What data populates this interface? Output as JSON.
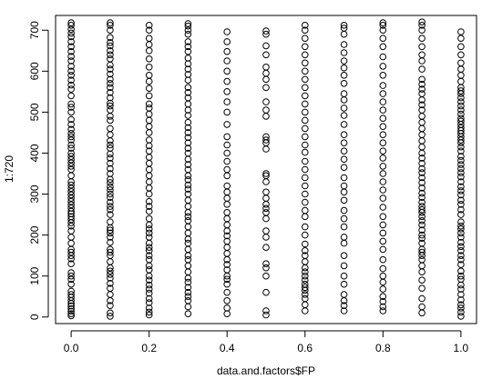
{
  "chart_data": {
    "type": "scatter",
    "title": "",
    "xlabel": "data.and.factors$FP",
    "ylabel": "1:720",
    "xlim": [
      -0.04,
      1.04
    ],
    "ylim": [
      -16,
      736
    ],
    "x_ticks": [
      0.0,
      0.2,
      0.4,
      0.6,
      0.8,
      1.0
    ],
    "x_tick_labels": [
      "0.0",
      "0.2",
      "0.4",
      "0.6",
      "0.8",
      "1.0"
    ],
    "y_ticks": [
      0,
      100,
      200,
      300,
      400,
      500,
      600,
      700
    ],
    "y_tick_labels": [
      "0",
      "100",
      "200",
      "300",
      "400",
      "500",
      "600",
      "700"
    ],
    "grid": false,
    "legend": "none",
    "marker": "open-circle",
    "marker_color": "#000000",
    "series": [
      {
        "x": 0.0,
        "y": [
          3,
          8,
          14,
          20,
          27,
          33,
          40,
          48,
          55,
          63,
          80,
          92,
          100,
          108,
          130,
          142,
          150,
          158,
          165,
          180,
          195,
          210,
          222,
          230,
          238,
          245,
          252,
          258,
          266,
          274,
          282,
          290,
          298,
          306,
          314,
          322,
          330,
          345,
          360,
          368,
          376,
          384,
          392,
          400,
          412,
          420,
          432,
          440,
          448,
          458,
          470,
          482,
          500,
          512,
          520,
          540,
          556,
          566,
          578,
          590,
          600,
          612,
          625,
          636,
          648,
          660,
          672,
          684,
          693,
          702,
          712,
          718
        ]
      },
      {
        "x": 0.1,
        "y": [
          2,
          10,
          28,
          40,
          55,
          70,
          82,
          95,
          104,
          112,
          120,
          135,
          150,
          158,
          165,
          182,
          195,
          205,
          212,
          218,
          232,
          250,
          262,
          270,
          280,
          292,
          300,
          310,
          318,
          328,
          336,
          350,
          362,
          375,
          388,
          398,
          412,
          420,
          430,
          445,
          460,
          480,
          490,
          505,
          515,
          522,
          535,
          548,
          560,
          570,
          580,
          593,
          605,
          615,
          630,
          640,
          650,
          662,
          670,
          682,
          700,
          712,
          718
        ]
      },
      {
        "x": 0.2,
        "y": [
          5,
          12,
          22,
          35,
          45,
          58,
          68,
          78,
          90,
          100,
          115,
          125,
          140,
          150,
          162,
          170,
          180,
          195,
          205,
          215,
          225,
          240,
          258,
          270,
          282,
          300,
          315,
          330,
          345,
          360,
          375,
          390,
          405,
          418,
          432,
          450,
          465,
          480,
          495,
          510,
          520,
          540,
          558,
          575,
          590,
          610,
          630,
          650,
          665,
          680,
          700,
          712
        ]
      },
      {
        "x": 0.3,
        "y": [
          8,
          25,
          40,
          50,
          60,
          72,
          85,
          95,
          110,
          125,
          140,
          150,
          165,
          180,
          190,
          205,
          220,
          235,
          245,
          255,
          270,
          285,
          300,
          312,
          322,
          335,
          345,
          360,
          372,
          385,
          400,
          412,
          425,
          438,
          450,
          462,
          475,
          492,
          505,
          520,
          535,
          548,
          560,
          578,
          592,
          605,
          618,
          632,
          648,
          660,
          672,
          690,
          700,
          710,
          716
        ]
      },
      {
        "x": 0.4,
        "y": [
          8,
          22,
          40,
          60,
          80,
          92,
          100,
          115,
          128,
          140,
          155,
          170,
          185,
          198,
          210,
          225,
          240,
          255,
          275,
          290,
          305,
          320,
          345,
          360,
          380,
          400,
          420,
          440,
          470,
          500,
          525,
          550,
          575,
          600,
          625,
          648,
          672,
          696
        ]
      },
      {
        "x": 0.5,
        "y": [
          5,
          15,
          60,
          100,
          120,
          130,
          170,
          195,
          210,
          240,
          255,
          265,
          275,
          290,
          305,
          330,
          345,
          350,
          410,
          425,
          432,
          440,
          490,
          505,
          525,
          560,
          580,
          595,
          610,
          640,
          662,
          690,
          698
        ]
      },
      {
        "x": 0.6,
        "y": [
          15,
          30,
          45,
          55,
          65,
          72,
          80,
          90,
          100,
          110,
          120,
          135,
          150,
          162,
          178,
          200,
          220,
          245,
          260,
          280,
          300,
          320,
          340,
          360,
          380,
          402,
          420,
          440,
          460,
          480,
          500,
          520,
          540,
          560,
          580,
          600,
          620,
          640,
          660,
          680,
          700,
          712
        ]
      },
      {
        "x": 0.7,
        "y": [
          15,
          28,
          40,
          55,
          80,
          100,
          125,
          150,
          180,
          195,
          220,
          240,
          260,
          285,
          305,
          320,
          340,
          365,
          385,
          405,
          425,
          445,
          470,
          492,
          510,
          530,
          545,
          570,
          590,
          608,
          625,
          645,
          665,
          690,
          705,
          712
        ]
      },
      {
        "x": 0.8,
        "y": [
          15,
          25,
          38,
          50,
          68,
          85,
          100,
          118,
          140,
          165,
          185,
          205,
          225,
          245,
          268,
          290,
          310,
          330,
          350,
          368,
          388,
          405,
          425,
          445,
          465,
          485,
          505,
          525,
          545,
          565,
          590,
          612,
          635,
          660,
          680,
          700,
          712,
          718
        ]
      },
      {
        "x": 0.9,
        "y": [
          10,
          25,
          45,
          70,
          90,
          110,
          125,
          140,
          150,
          158,
          165,
          180,
          192,
          200,
          212,
          225,
          235,
          245,
          255,
          262,
          270,
          280,
          292,
          302,
          315,
          328,
          340,
          352,
          362,
          375,
          388,
          400,
          415,
          430,
          445,
          460,
          475,
          490,
          505,
          518,
          530,
          545,
          556,
          568,
          580,
          605,
          625,
          640,
          660,
          680,
          700,
          712,
          720
        ]
      },
      {
        "x": 1.0,
        "y": [
          2,
          12,
          22,
          30,
          42,
          55,
          68,
          78,
          92,
          100,
          112,
          128,
          140,
          150,
          162,
          172,
          182,
          195,
          205,
          215,
          222,
          232,
          250,
          262,
          275,
          285,
          298,
          308,
          318,
          330,
          342,
          352,
          362,
          372,
          382,
          392,
          405,
          415,
          425,
          432,
          440,
          448,
          455,
          462,
          470,
          478,
          485,
          495,
          505,
          515,
          525,
          535,
          545,
          552,
          560,
          575,
          590,
          605,
          620,
          640,
          660,
          680,
          696
        ]
      }
    ]
  }
}
